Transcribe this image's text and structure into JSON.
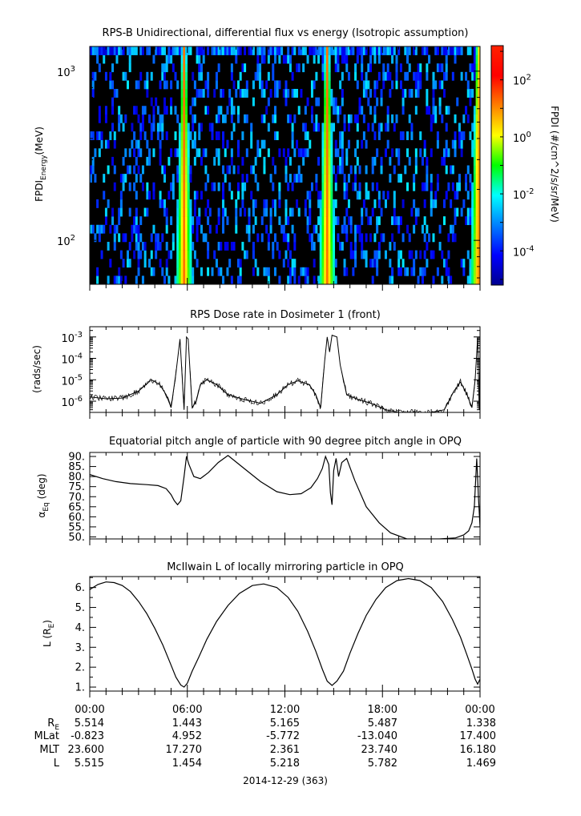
{
  "chart_data": [
    {
      "type": "heatmap",
      "title": "RPS-B  Unidirectional, differential flux vs energy (Isotropic assumption)",
      "ylabel_main": "FPDI",
      "ylabel_sub": "Energy",
      "ylabel_unit": "(MeV)",
      "yscale": "log",
      "ylim": [
        55,
        1400
      ],
      "yticks": [
        {
          "base": "10",
          "exp": "3",
          "value": 1000
        },
        {
          "base": "10",
          "exp": "2",
          "value": 100
        }
      ],
      "xlim_hours": [
        0,
        24
      ],
      "enhancement_bands_hours": [
        5.8,
        14.6,
        23.9
      ],
      "colorbar": {
        "label": "FPDI (#/cm^2/s/sr/MeV)",
        "scale": "log",
        "range_exp": [
          -5.2,
          3.2
        ],
        "ticks": [
          {
            "base": "10",
            "exp": "2",
            "value": 2
          },
          {
            "base": "10",
            "exp": "0",
            "value": 0
          },
          {
            "base": "10",
            "exp": "-2",
            "value": -2
          },
          {
            "base": "10",
            "exp": "-4",
            "value": -4
          }
        ]
      }
    },
    {
      "type": "line",
      "title": "RPS  Dose rate in Dosimeter 1 (front)",
      "ylabel": "(rads/sec)",
      "yscale": "log",
      "ylim": [
        3e-07,
        0.003
      ],
      "yticks": [
        {
          "base": "10",
          "exp": "-3",
          "value": 0.001
        },
        {
          "base": "10",
          "exp": "-4",
          "value": 0.0001
        },
        {
          "base": "10",
          "exp": "-5",
          "value": 1e-05
        },
        {
          "base": "10",
          "exp": "-6",
          "value": 1e-06
        }
      ],
      "x_hours": [
        0,
        1,
        2,
        3,
        3.8,
        4.3,
        4.7,
        5.0,
        5.3,
        5.55,
        5.8,
        5.95,
        6.05,
        6.3,
        6.55,
        6.8,
        7.2,
        7.8,
        8.5,
        9.5,
        10.5,
        11.5,
        12.2,
        12.8,
        13.5,
        13.9,
        14.2,
        14.45,
        14.6,
        14.75,
        14.9,
        15.2,
        15.4,
        15.8,
        16.5,
        17.3,
        18.2,
        19,
        20,
        21,
        21.8,
        22.4,
        22.8,
        23.2,
        23.5,
        23.7,
        23.85,
        23.95,
        24
      ],
      "values": [
        1.6e-06,
        1.3e-06,
        1.4e-06,
        3e-06,
        1e-05,
        6e-06,
        2e-06,
        5e-07,
        2e-05,
        0.0008,
        4e-07,
        0.001,
        0.0008,
        5e-07,
        1e-06,
        6e-06,
        1e-05,
        6e-06,
        2e-06,
        1.2e-06,
        8e-07,
        2e-06,
        6e-06,
        9e-06,
        6e-06,
        2e-06,
        5e-07,
        8e-05,
        0.001,
        0.0002,
        0.0012,
        0.001,
        5e-05,
        2e-06,
        1.2e-06,
        8e-07,
        4e-07,
        3e-07,
        3e-07,
        3e-07,
        4e-07,
        3e-06,
        8e-06,
        2e-06,
        5e-07,
        1e-05,
        0.0009,
        4e-07,
        0.0006
      ]
    },
    {
      "type": "line",
      "title": "Equatorial pitch angle of particle with 90 degree pitch angle in OPQ",
      "ylabel_main": "α",
      "ylabel_sub": "Eq",
      "ylabel_unit": " (deg)",
      "ylim": [
        49,
        92
      ],
      "yticks": [
        90,
        85,
        80,
        75,
        70,
        65,
        60,
        55,
        50
      ],
      "ytick_labels": [
        "90.",
        "85.",
        "80.",
        "75.",
        "70.",
        "65.",
        "60.",
        "55.",
        "50."
      ],
      "x_hours": [
        0,
        0.8,
        1.6,
        2.5,
        3.5,
        4.2,
        4.7,
        5.0,
        5.2,
        5.4,
        5.6,
        5.8,
        5.95,
        6.1,
        6.4,
        6.8,
        7.3,
        7.9,
        8.5,
        9.5,
        10.5,
        11.5,
        12.3,
        13.0,
        13.6,
        14.0,
        14.3,
        14.5,
        14.7,
        14.8,
        14.9,
        15.0,
        15.15,
        15.3,
        15.5,
        15.8,
        16.3,
        17,
        17.8,
        18.5,
        19.5,
        20.5,
        21.5,
        22.5,
        23.0,
        23.3,
        23.5,
        23.65,
        23.8,
        23.9,
        24
      ],
      "values": [
        81,
        79,
        77.5,
        76.5,
        76,
        75.5,
        74,
        71,
        68,
        66,
        68,
        80,
        90,
        86,
        80,
        79,
        82,
        87,
        90.5,
        84,
        77.5,
        72.5,
        71,
        71.5,
        74.5,
        79,
        84,
        90,
        86,
        72,
        66,
        83,
        89,
        80,
        87,
        89,
        78,
        65,
        57,
        52,
        49,
        49,
        49,
        49.5,
        51,
        53,
        57,
        65,
        89,
        70,
        55
      ]
    },
    {
      "type": "line",
      "title": "McIlwain L of locally mirroring particle in OPQ",
      "ylabel_main": "L (R",
      "ylabel_sub": "E",
      "ylabel_unit": ")",
      "ylim": [
        0.8,
        6.55
      ],
      "yticks": [
        6.0,
        5.0,
        4.0,
        3.0,
        2.0,
        1.0
      ],
      "ytick_labels": [
        "6.",
        "5.",
        "4.",
        "3.",
        "2.",
        "1."
      ],
      "x_hours": [
        0,
        0.5,
        1.0,
        1.5,
        2.0,
        2.5,
        3.0,
        3.5,
        4.0,
        4.5,
        5.0,
        5.3,
        5.6,
        5.8,
        6.0,
        6.3,
        6.7,
        7.2,
        7.8,
        8.5,
        9.2,
        10.0,
        10.7,
        11.5,
        12.2,
        12.8,
        13.4,
        13.9,
        14.3,
        14.6,
        14.9,
        15.2,
        15.6,
        16.0,
        16.5,
        17.0,
        17.6,
        18.2,
        18.9,
        19.6,
        20.3,
        21.0,
        21.7,
        22.3,
        22.8,
        23.2,
        23.5,
        23.7,
        23.85,
        24
      ],
      "values": [
        5.9,
        6.15,
        6.28,
        6.25,
        6.1,
        5.8,
        5.3,
        4.7,
        3.95,
        3.1,
        2.1,
        1.5,
        1.1,
        1.0,
        1.2,
        1.8,
        2.5,
        3.4,
        4.3,
        5.1,
        5.7,
        6.1,
        6.18,
        6.0,
        5.5,
        4.8,
        3.8,
        2.8,
        1.9,
        1.3,
        1.08,
        1.3,
        1.8,
        2.7,
        3.7,
        4.6,
        5.4,
        6.0,
        6.35,
        6.45,
        6.35,
        6.0,
        5.3,
        4.4,
        3.5,
        2.6,
        1.9,
        1.4,
        1.15,
        1.4
      ]
    }
  ],
  "x_axis": {
    "tick_labels": [
      "00:00",
      "06:00",
      "12:00",
      "18:00",
      "00:00"
    ],
    "tick_hours": [
      0,
      6,
      12,
      18,
      24
    ],
    "date_label": "2014-12-29 (363)"
  },
  "ephemeris": {
    "rows": [
      {
        "label_main": "R",
        "label_sub": "E",
        "values": [
          "5.514",
          "1.443",
          "5.165",
          "5.487",
          "1.338"
        ]
      },
      {
        "label_main": "MLat",
        "label_sub": "",
        "values": [
          "-0.823",
          "4.952",
          "-5.772",
          "-13.040",
          "17.400"
        ]
      },
      {
        "label_main": "MLT",
        "label_sub": "",
        "values": [
          "23.600",
          "17.270",
          "2.361",
          "23.740",
          "16.180"
        ]
      },
      {
        "label_main": "L",
        "label_sub": "",
        "values": [
          "5.515",
          "1.454",
          "5.218",
          "5.782",
          "1.469"
        ]
      }
    ]
  }
}
